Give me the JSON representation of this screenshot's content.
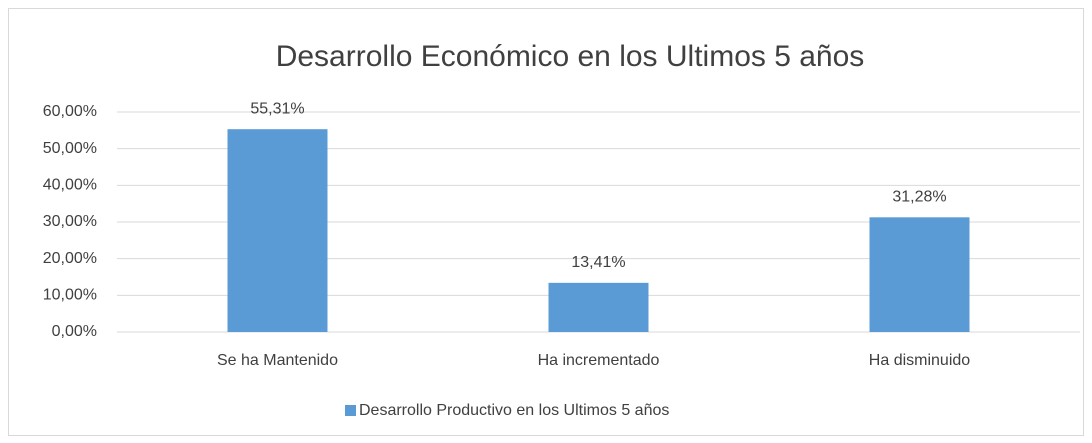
{
  "chart_data": {
    "type": "bar",
    "title": "Desarrollo Económico en los Ultimos 5 años",
    "categories": [
      "Se ha Mantenido",
      "Ha incrementado",
      "Ha disminuido"
    ],
    "series": [
      {
        "name": "Desarrollo Productivo en los Ultimos 5 años",
        "color": "#5b9bd5",
        "values": [
          55.31,
          13.41,
          31.28
        ],
        "value_labels": [
          "55,31%",
          "13,41%",
          "31,28%"
        ]
      }
    ],
    "ylim": [
      0,
      60
    ],
    "yticks": [
      {
        "value": 0,
        "label": "0,00%"
      },
      {
        "value": 10,
        "label": "10,00%"
      },
      {
        "value": 20,
        "label": "20,00%"
      },
      {
        "value": 30,
        "label": "30,00%"
      },
      {
        "value": 40,
        "label": "40,00%"
      },
      {
        "value": 50,
        "label": "50,00%"
      },
      {
        "value": 60,
        "label": "60,00%"
      }
    ],
    "grid": true,
    "legend": "bottom"
  }
}
